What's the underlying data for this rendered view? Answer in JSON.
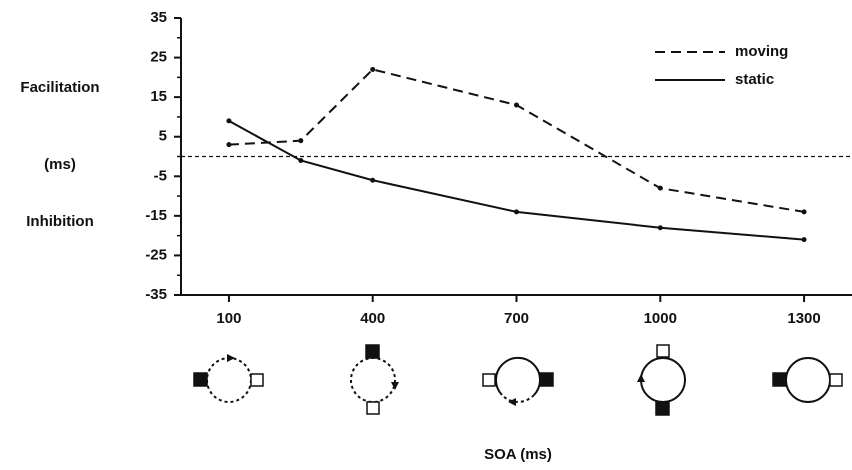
{
  "chart_data": {
    "type": "line",
    "y_label_lines": [
      "Facilitation",
      "(ms)",
      "Inhibition"
    ],
    "xlabel": "SOA (ms)",
    "x": [
      100,
      250,
      400,
      700,
      1000,
      1300
    ],
    "series": [
      {
        "name": "moving",
        "color": "#111111",
        "linestyle": "dashed",
        "values": [
          3,
          4,
          22,
          13,
          -8,
          -14
        ]
      },
      {
        "name": "static",
        "color": "#111111",
        "linestyle": "solid",
        "values": [
          9,
          -1,
          -6,
          -14,
          -18,
          -21
        ]
      }
    ],
    "xlim": [
      0,
      1400
    ],
    "xticks": [
      100,
      400,
      700,
      1000,
      1300
    ],
    "ylim": [
      -35,
      35
    ],
    "yticks": [
      35,
      25,
      15,
      5,
      -5,
      -15,
      -25,
      -35
    ],
    "yminorticks": [
      30,
      20,
      10,
      0,
      -10,
      -20,
      -30
    ],
    "reference_line": 0,
    "legend": "upper right"
  }
}
